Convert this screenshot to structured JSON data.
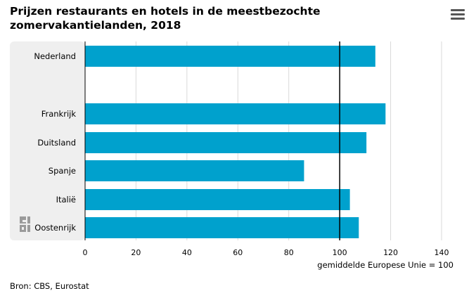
{
  "header": {
    "title": "Prijzen restaurants en hotels in de meestbezochte zomervakantielanden, 2018",
    "menu_icon": "hamburger-menu-icon"
  },
  "footer": {
    "source": "Bron: CBS, Eurostat"
  },
  "logo_icon": "cbs-logo-icon",
  "chart_data": {
    "type": "bar",
    "orientation": "horizontal",
    "title": "Prijzen restaurants en hotels in de meestbezochte zomervakantielanden, 2018",
    "categories": [
      "Nederland",
      "",
      "Frankrijk",
      "Duitsland",
      "Spanje",
      "Italië",
      "Oostenrijk"
    ],
    "values": [
      114,
      null,
      118,
      110.5,
      86,
      104,
      107.5
    ],
    "xlabel": "gemiddelde Europese Unie = 100",
    "ylabel": "",
    "xlim": [
      0,
      140
    ],
    "xticks": [
      0,
      20,
      40,
      60,
      80,
      100,
      120,
      140
    ],
    "reference_line": 100,
    "grid": true,
    "bar_color": "#00a1cd",
    "highlight_band_color": "#efefef"
  }
}
